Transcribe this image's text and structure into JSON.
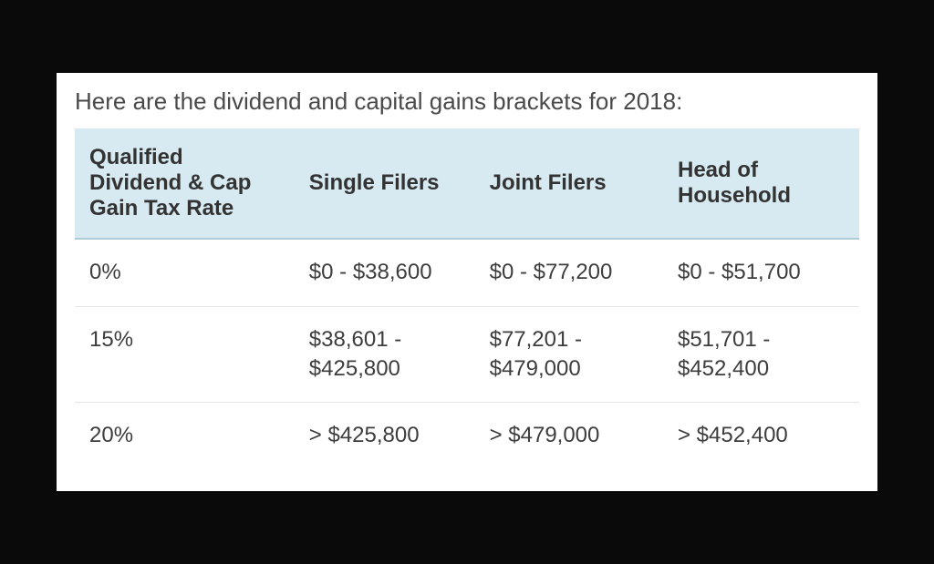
{
  "title": "Here are the dividend and capital gains brackets for 2018:",
  "table": {
    "type": "table",
    "header_bg": "#d7e9f1",
    "header_border": "#aecbda",
    "row_border": "#e5e5e5",
    "text_color": "#3d3d3d",
    "header_fontsize": 24,
    "cell_fontsize": 24,
    "column_widths_pct": [
      28,
      23,
      24,
      25
    ],
    "columns": [
      "Qualified Dividend & Cap Gain Tax Rate",
      "Single Filers",
      "Joint Filers",
      "Head of Household"
    ],
    "rows": [
      [
        "0%",
        "$0 - $38,600",
        "$0 - $77,200",
        "$0 - $51,700"
      ],
      [
        "15%",
        "$38,601 - $425,800",
        "$77,201 - $479,000",
        "$51,701 - $452,400"
      ],
      [
        "20%",
        "> $425,800",
        "> $479,000",
        "> $452,400"
      ]
    ]
  },
  "background_color": "#0a0a0a",
  "card_bg": "#ffffff",
  "title_color": "#4a4a4a",
  "title_fontsize": 26
}
